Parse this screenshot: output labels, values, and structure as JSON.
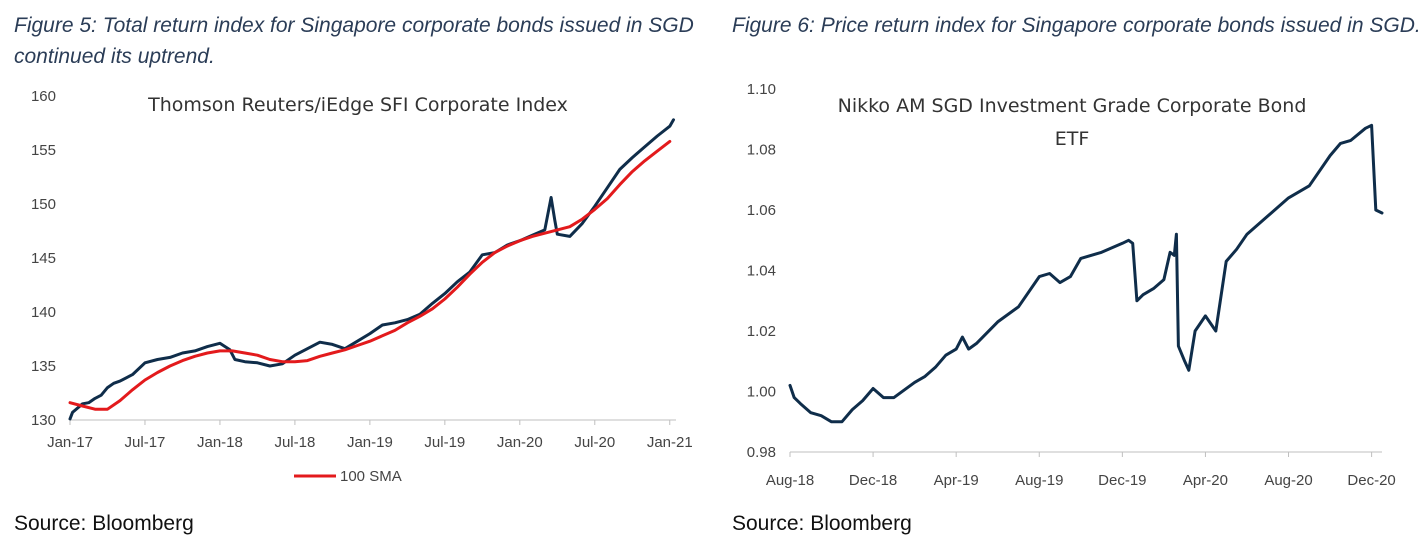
{
  "figures": [
    {
      "caption": "Figure 5: Total return index for Singapore corporate bonds issued in SGD continued its uptrend.",
      "source": "Source: Bloomberg"
    },
    {
      "caption": "Figure 6: Price return index for Singapore corporate bonds issued in SGD.",
      "source": "Source: Bloomberg"
    }
  ],
  "colors": {
    "navy": "#0f2d4a",
    "red": "#e31a1c"
  },
  "chart_data": [
    {
      "type": "line",
      "title": "Thomson Reuters/iEdge SFI Corporate Index",
      "xlabel": "",
      "ylabel": "",
      "ylim": [
        130,
        160
      ],
      "yticks": [
        "130",
        "135",
        "140",
        "145",
        "150",
        "155",
        "160"
      ],
      "xlim": [
        0,
        48.5
      ],
      "xtick_positions": [
        0,
        6,
        12,
        18,
        24,
        30,
        36,
        42,
        48
      ],
      "xtick_labels": [
        "Jan-17",
        "Jul-17",
        "Jan-18",
        "Jul-18",
        "Jan-19",
        "Jul-19",
        "Jan-20",
        "Jul-20",
        "Jan-21"
      ],
      "grid": false,
      "legend": {
        "position": "bottom",
        "entries": [
          "",
          "100 SMA"
        ]
      },
      "series": [
        {
          "name": "",
          "color": "#0f2d4a",
          "points": [
            [
              0,
              130.1
            ],
            [
              0.2,
              130.7
            ],
            [
              0.5,
              131.0
            ],
            [
              1,
              131.5
            ],
            [
              1.5,
              131.6
            ],
            [
              2,
              132.0
            ],
            [
              2.5,
              132.3
            ],
            [
              3,
              133.0
            ],
            [
              3.5,
              133.4
            ],
            [
              4,
              133.6
            ],
            [
              5,
              134.2
            ],
            [
              6,
              135.3
            ],
            [
              7,
              135.6
            ],
            [
              8,
              135.8
            ],
            [
              9,
              136.2
            ],
            [
              10,
              136.4
            ],
            [
              11,
              136.8
            ],
            [
              12,
              137.1
            ],
            [
              12.8,
              136.5
            ],
            [
              13.2,
              135.6
            ],
            [
              14,
              135.4
            ],
            [
              15,
              135.3
            ],
            [
              16,
              135.0
            ],
            [
              17,
              135.2
            ],
            [
              18,
              136.0
            ],
            [
              19,
              136.6
            ],
            [
              20,
              137.2
            ],
            [
              21,
              137.0
            ],
            [
              22,
              136.6
            ],
            [
              23,
              137.3
            ],
            [
              24,
              138.0
            ],
            [
              25,
              138.8
            ],
            [
              26,
              139.0
            ],
            [
              27,
              139.3
            ],
            [
              28,
              139.8
            ],
            [
              29,
              140.8
            ],
            [
              30,
              141.7
            ],
            [
              31,
              142.8
            ],
            [
              32,
              143.7
            ],
            [
              33,
              145.3
            ],
            [
              34,
              145.5
            ],
            [
              35,
              146.2
            ],
            [
              36,
              146.6
            ],
            [
              37,
              147.1
            ],
            [
              38,
              147.6
            ],
            [
              38.5,
              150.6
            ],
            [
              38.8,
              148.5
            ],
            [
              39,
              147.2
            ],
            [
              40,
              147.0
            ],
            [
              41,
              148.2
            ],
            [
              42,
              149.8
            ],
            [
              43,
              151.5
            ],
            [
              44,
              153.2
            ],
            [
              45,
              154.3
            ],
            [
              46,
              155.3
            ],
            [
              47,
              156.3
            ],
            [
              48,
              157.2
            ],
            [
              48.3,
              157.8
            ]
          ]
        },
        {
          "name": "100 SMA",
          "color": "#e31a1c",
          "points": [
            [
              0,
              131.6
            ],
            [
              1,
              131.3
            ],
            [
              2,
              131.0
            ],
            [
              3,
              131.0
            ],
            [
              4,
              131.8
            ],
            [
              5,
              132.8
            ],
            [
              6,
              133.7
            ],
            [
              7,
              134.4
            ],
            [
              8,
              135.0
            ],
            [
              9,
              135.5
            ],
            [
              10,
              135.9
            ],
            [
              11,
              136.2
            ],
            [
              12,
              136.4
            ],
            [
              13,
              136.4
            ],
            [
              14,
              136.2
            ],
            [
              15,
              136.0
            ],
            [
              16,
              135.6
            ],
            [
              17,
              135.4
            ],
            [
              18,
              135.4
            ],
            [
              19,
              135.5
            ],
            [
              20,
              135.9
            ],
            [
              21,
              136.2
            ],
            [
              22,
              136.5
            ],
            [
              23,
              136.9
            ],
            [
              24,
              137.3
            ],
            [
              25,
              137.8
            ],
            [
              26,
              138.3
            ],
            [
              27,
              139.0
            ],
            [
              28,
              139.6
            ],
            [
              29,
              140.3
            ],
            [
              30,
              141.2
            ],
            [
              31,
              142.3
            ],
            [
              32,
              143.5
            ],
            [
              33,
              144.6
            ],
            [
              34,
              145.5
            ],
            [
              35,
              146.1
            ],
            [
              36,
              146.6
            ],
            [
              37,
              147.0
            ],
            [
              38,
              147.3
            ],
            [
              39,
              147.6
            ],
            [
              40,
              147.9
            ],
            [
              41,
              148.6
            ],
            [
              42,
              149.5
            ],
            [
              43,
              150.5
            ],
            [
              44,
              151.8
            ],
            [
              45,
              153.0
            ],
            [
              46,
              154.0
            ],
            [
              47,
              154.9
            ],
            [
              48,
              155.8
            ]
          ]
        }
      ]
    },
    {
      "type": "line",
      "title": "Nikko AM SGD Investment Grade Corporate Bond ETF",
      "title_lines": [
        "Nikko AM SGD Investment Grade Corporate Bond",
        "ETF"
      ],
      "xlabel": "",
      "ylabel": "",
      "ylim": [
        0.98,
        1.1
      ],
      "yticks": [
        "0.98",
        "1.00",
        "1.02",
        "1.04",
        "1.06",
        "1.08",
        "1.10"
      ],
      "xlim": [
        0,
        28.5
      ],
      "xtick_positions": [
        0,
        4,
        8,
        12,
        16,
        20,
        24,
        28
      ],
      "xtick_labels": [
        "Aug-18",
        "Dec-18",
        "Apr-19",
        "Aug-19",
        "Dec-19",
        "Apr-20",
        "Aug-20",
        "Dec-20"
      ],
      "grid": false,
      "legend": null,
      "series": [
        {
          "name": "",
          "color": "#0f2d4a",
          "points": [
            [
              0,
              1.002
            ],
            [
              0.2,
              0.998
            ],
            [
              0.5,
              0.996
            ],
            [
              1,
              0.993
            ],
            [
              1.5,
              0.992
            ],
            [
              2,
              0.99
            ],
            [
              2.5,
              0.99
            ],
            [
              3,
              0.994
            ],
            [
              3.5,
              0.997
            ],
            [
              4,
              1.001
            ],
            [
              4.5,
              0.998
            ],
            [
              5,
              0.998
            ],
            [
              6,
              1.003
            ],
            [
              6.5,
              1.005
            ],
            [
              7,
              1.008
            ],
            [
              7.5,
              1.012
            ],
            [
              8,
              1.014
            ],
            [
              8.3,
              1.018
            ],
            [
              8.6,
              1.014
            ],
            [
              9,
              1.016
            ],
            [
              10,
              1.023
            ],
            [
              11,
              1.028
            ],
            [
              12,
              1.038
            ],
            [
              12.5,
              1.039
            ],
            [
              13,
              1.036
            ],
            [
              13.5,
              1.038
            ],
            [
              14,
              1.044
            ],
            [
              15,
              1.046
            ],
            [
              16,
              1.049
            ],
            [
              16.3,
              1.05
            ],
            [
              16.5,
              1.049
            ],
            [
              16.7,
              1.03
            ],
            [
              17,
              1.032
            ],
            [
              17.5,
              1.034
            ],
            [
              18,
              1.037
            ],
            [
              18.3,
              1.046
            ],
            [
              18.5,
              1.045
            ],
            [
              18.6,
              1.052
            ],
            [
              18.7,
              1.015
            ],
            [
              19,
              1.01
            ],
            [
              19.2,
              1.007
            ],
            [
              19.5,
              1.02
            ],
            [
              20,
              1.025
            ],
            [
              20.5,
              1.02
            ],
            [
              21,
              1.043
            ],
            [
              21.5,
              1.047
            ],
            [
              22,
              1.052
            ],
            [
              23,
              1.058
            ],
            [
              24,
              1.064
            ],
            [
              25,
              1.068
            ],
            [
              26,
              1.078
            ],
            [
              26.5,
              1.082
            ],
            [
              27,
              1.083
            ],
            [
              27.7,
              1.087
            ],
            [
              28,
              1.088
            ],
            [
              28.2,
              1.06
            ],
            [
              28.5,
              1.059
            ]
          ]
        }
      ]
    }
  ]
}
